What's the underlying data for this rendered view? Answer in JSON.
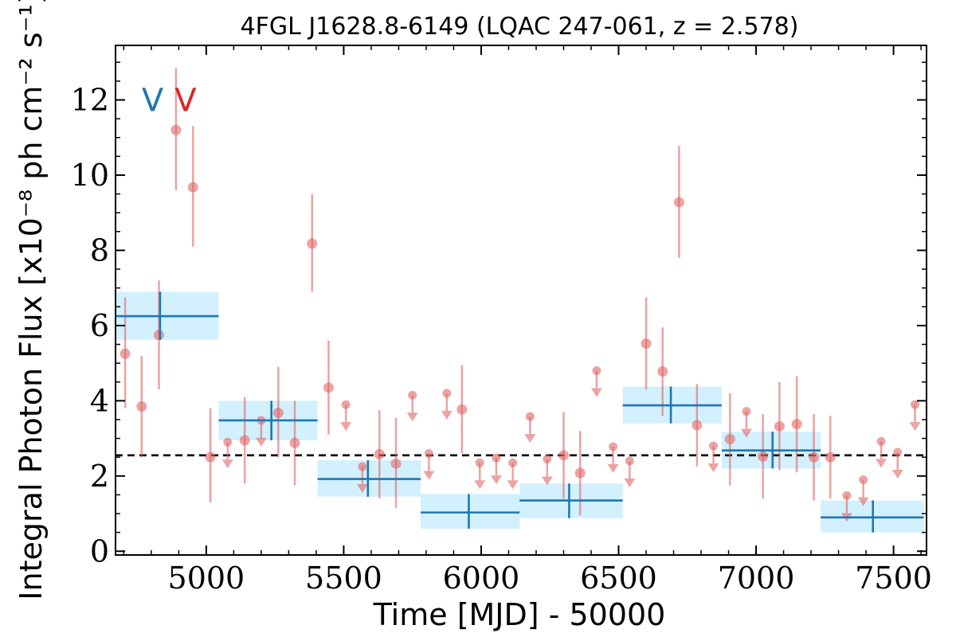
{
  "chart_data": {
    "type": "scatter",
    "title": "4FGL J1628.8-6149 (LQAC 247-061, z = 2.578)",
    "xlabel": "Time [MJD] - 50000",
    "ylabel": "Integral Photon Flux [x10⁻⁸ ph cm⁻² s⁻¹]",
    "xlim": [
      4670,
      7620
    ],
    "ylim": [
      -0.1,
      13.45
    ],
    "xticks": [
      5000,
      5500,
      6000,
      6500,
      7000,
      7500
    ],
    "yticks": [
      0,
      2,
      4,
      6,
      8,
      10,
      12
    ],
    "grid": false,
    "reference_line": {
      "y": 2.55,
      "style": "dashed",
      "color": "#000000"
    },
    "colors": {
      "detections": "#e06666",
      "blocks": "#1f77b4",
      "block_fill": "#cdeefd",
      "marker_v1": "#1f77b4",
      "marker_v2": "#d62728"
    },
    "markers": [
      {
        "label": "V",
        "x": 4805,
        "color": "#1f77b4"
      },
      {
        "label": "V",
        "x": 4925,
        "color": "#d62728"
      }
    ],
    "series": [
      {
        "kind": "points",
        "color": "#e06666",
        "points": [
          {
            "x": 4705,
            "y": 5.25,
            "lo": 3.8,
            "hi": 6.75
          },
          {
            "x": 4765,
            "y": 3.85,
            "lo": 2.5,
            "hi": 5.2
          },
          {
            "x": 4828,
            "y": 5.75,
            "lo": 4.3,
            "hi": 7.2
          },
          {
            "x": 4890,
            "y": 11.2,
            "lo": 9.6,
            "hi": 12.85
          },
          {
            "x": 4952,
            "y": 9.68,
            "lo": 8.1,
            "hi": 11.3
          },
          {
            "x": 5015,
            "y": 2.5,
            "lo": 1.3,
            "hi": 3.8
          },
          {
            "x": 5140,
            "y": 2.95,
            "lo": 1.8,
            "hi": 4.1
          },
          {
            "x": 5262,
            "y": 3.68,
            "lo": 2.5,
            "hi": 4.9
          },
          {
            "x": 5322,
            "y": 2.88,
            "lo": 1.75,
            "hi": 4.0
          },
          {
            "x": 5385,
            "y": 8.18,
            "lo": 6.9,
            "hi": 9.5
          },
          {
            "x": 5445,
            "y": 4.35,
            "lo": 3.1,
            "hi": 5.6
          },
          {
            "x": 5630,
            "y": 2.58,
            "lo": 1.4,
            "hi": 3.75
          },
          {
            "x": 5690,
            "y": 2.33,
            "lo": 1.15,
            "hi": 3.55
          },
          {
            "x": 5930,
            "y": 3.77,
            "lo": 2.6,
            "hi": 4.95
          },
          {
            "x": 6300,
            "y": 2.55,
            "lo": 1.4,
            "hi": 3.7
          },
          {
            "x": 6360,
            "y": 2.08,
            "lo": 0.95,
            "hi": 3.2
          },
          {
            "x": 6600,
            "y": 5.52,
            "lo": 4.3,
            "hi": 6.75
          },
          {
            "x": 6660,
            "y": 4.78,
            "lo": 3.6,
            "hi": 5.95
          },
          {
            "x": 6720,
            "y": 9.28,
            "lo": 7.8,
            "hi": 10.78
          },
          {
            "x": 6785,
            "y": 3.35,
            "lo": 2.25,
            "hi": 4.45
          },
          {
            "x": 6905,
            "y": 2.98,
            "lo": 1.75,
            "hi": 4.2
          },
          {
            "x": 7025,
            "y": 2.52,
            "lo": 1.4,
            "hi": 3.65
          },
          {
            "x": 7085,
            "y": 3.32,
            "lo": 2.15,
            "hi": 4.5
          },
          {
            "x": 7148,
            "y": 3.38,
            "lo": 2.1,
            "hi": 4.65
          },
          {
            "x": 7210,
            "y": 2.5,
            "lo": 1.35,
            "hi": 3.65
          },
          {
            "x": 7270,
            "y": 2.5,
            "lo": 1.4,
            "hi": 3.6
          }
        ]
      },
      {
        "kind": "upper_limits",
        "color": "#e06666",
        "points": [
          {
            "x": 5078,
            "y": 2.9
          },
          {
            "x": 5200,
            "y": 3.48
          },
          {
            "x": 5508,
            "y": 3.9
          },
          {
            "x": 5568,
            "y": 2.25
          },
          {
            "x": 5750,
            "y": 4.15
          },
          {
            "x": 5810,
            "y": 2.6
          },
          {
            "x": 5875,
            "y": 4.2
          },
          {
            "x": 5995,
            "y": 2.35
          },
          {
            "x": 6055,
            "y": 2.48
          },
          {
            "x": 6115,
            "y": 2.35
          },
          {
            "x": 6178,
            "y": 3.58
          },
          {
            "x": 6240,
            "y": 2.45
          },
          {
            "x": 6420,
            "y": 4.8
          },
          {
            "x": 6480,
            "y": 2.78
          },
          {
            "x": 6540,
            "y": 2.4
          },
          {
            "x": 6845,
            "y": 2.8
          },
          {
            "x": 6965,
            "y": 3.72
          },
          {
            "x": 7330,
            "y": 1.48
          },
          {
            "x": 7390,
            "y": 1.9
          },
          {
            "x": 7455,
            "y": 2.92
          },
          {
            "x": 7515,
            "y": 2.63
          },
          {
            "x": 7578,
            "y": 3.9
          }
        ]
      },
      {
        "kind": "bayesian_blocks",
        "color": "#1f77b4",
        "blocks": [
          {
            "x_start": 4670,
            "x_end": 5045,
            "y": 6.25,
            "y_lo": 5.62,
            "y_hi": 6.9,
            "x_mid": 4832
          },
          {
            "x_start": 5045,
            "x_end": 5405,
            "y": 3.48,
            "y_lo": 2.95,
            "y_hi": 4.0,
            "x_mid": 5237
          },
          {
            "x_start": 5405,
            "x_end": 5780,
            "y": 1.92,
            "y_lo": 1.45,
            "y_hi": 2.42,
            "x_mid": 5588
          },
          {
            "x_start": 5780,
            "x_end": 6140,
            "y": 1.03,
            "y_lo": 0.6,
            "y_hi": 1.52,
            "x_mid": 5955
          },
          {
            "x_start": 6140,
            "x_end": 6515,
            "y": 1.35,
            "y_lo": 0.88,
            "y_hi": 1.8,
            "x_mid": 6320
          },
          {
            "x_start": 6515,
            "x_end": 6875,
            "y": 3.88,
            "y_lo": 3.4,
            "y_hi": 4.38,
            "x_mid": 6690
          },
          {
            "x_start": 6875,
            "x_end": 7235,
            "y": 2.68,
            "y_lo": 2.2,
            "y_hi": 3.18,
            "x_mid": 7060
          },
          {
            "x_start": 7235,
            "x_end": 7610,
            "y": 0.9,
            "y_lo": 0.5,
            "y_hi": 1.35,
            "x_mid": 7425
          }
        ]
      }
    ]
  }
}
